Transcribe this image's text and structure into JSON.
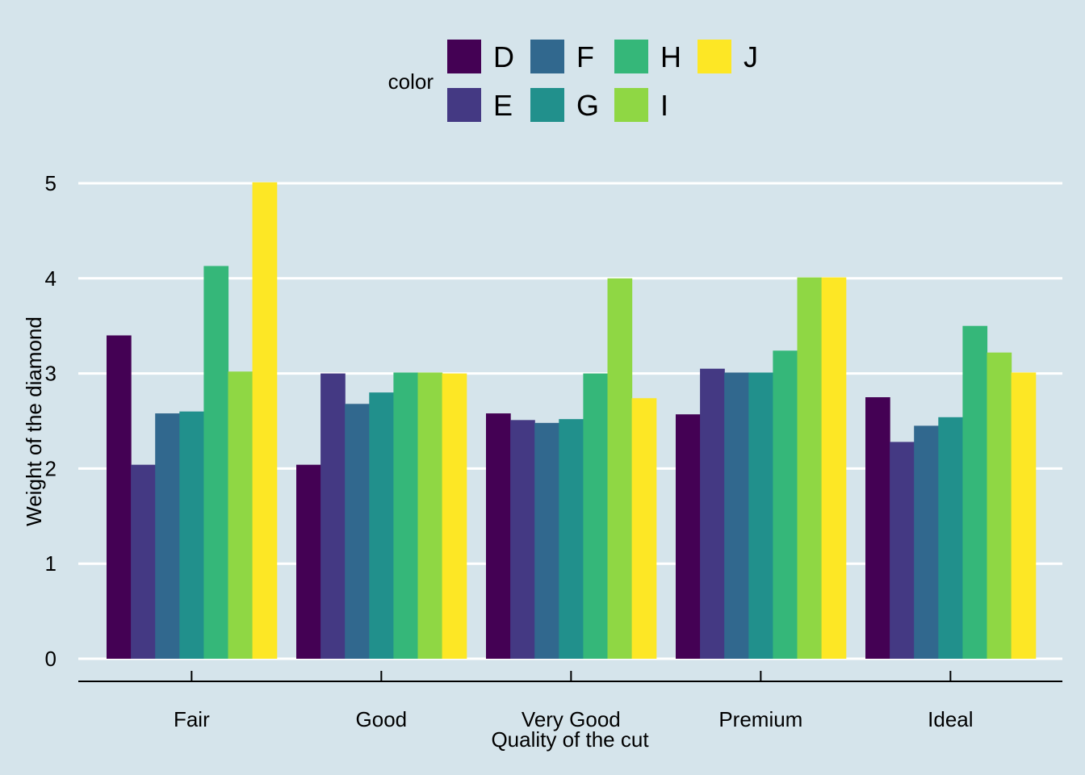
{
  "chart_data": {
    "type": "bar",
    "xlabel": "Quality of the cut",
    "ylabel": "Weight of the diamond",
    "categories": [
      "Fair",
      "Good",
      "Very Good",
      "Premium",
      "Ideal"
    ],
    "ylim": [
      0,
      5
    ],
    "yticks": [
      "0",
      "1",
      "2",
      "3",
      "4",
      "5"
    ],
    "grid": "horizontal",
    "legend": {
      "title": "color",
      "position": "top"
    },
    "series": [
      {
        "name": "D",
        "color": "#440154",
        "values": [
          3.4,
          2.04,
          2.58,
          2.57,
          2.75
        ]
      },
      {
        "name": "E",
        "color": "#443983",
        "values": [
          2.04,
          3.0,
          2.51,
          3.05,
          2.28
        ]
      },
      {
        "name": "F",
        "color": "#31688e",
        "values": [
          2.58,
          2.68,
          2.48,
          3.01,
          2.45
        ]
      },
      {
        "name": "G",
        "color": "#21908c",
        "values": [
          2.6,
          2.8,
          2.52,
          3.01,
          2.54
        ]
      },
      {
        "name": "H",
        "color": "#35b779",
        "values": [
          4.13,
          3.01,
          3.0,
          3.24,
          3.5
        ]
      },
      {
        "name": "I",
        "color": "#8fd744",
        "values": [
          3.02,
          3.01,
          4.0,
          4.01,
          3.22
        ]
      },
      {
        "name": "J",
        "color": "#fde725",
        "values": [
          5.01,
          3.0,
          2.74,
          4.01,
          3.01
        ]
      }
    ]
  }
}
